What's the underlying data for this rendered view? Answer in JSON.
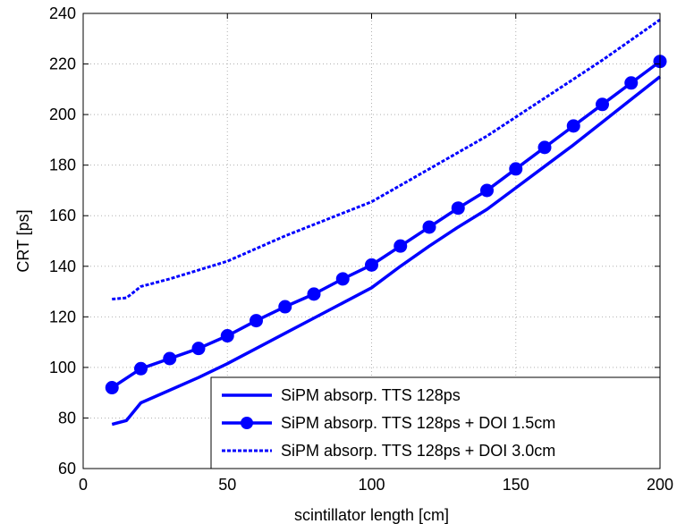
{
  "chart_data": {
    "type": "line",
    "title": "",
    "xlabel": "scintillator length [cm]",
    "ylabel": "CRT [ps]",
    "xlim": [
      0,
      200
    ],
    "ylim": [
      60,
      240
    ],
    "xticks": [
      0,
      50,
      100,
      150,
      200
    ],
    "yticks": [
      60,
      80,
      100,
      120,
      140,
      160,
      180,
      200,
      220,
      240
    ],
    "grid": true,
    "legend_position": "bottom-right",
    "series": [
      {
        "name": "SiPM absorp. TTS 128ps",
        "style": "solid",
        "marker": "none",
        "color": "#0000ff",
        "x": [
          10,
          15,
          20,
          30,
          40,
          50,
          60,
          70,
          80,
          90,
          100,
          110,
          120,
          130,
          140,
          150,
          160,
          170,
          180,
          190,
          200
        ],
        "y": [
          77.5,
          79,
          86,
          91,
          96,
          101.5,
          107.5,
          113.5,
          119.5,
          125.5,
          131.5,
          140,
          148,
          155.5,
          162.5,
          171,
          179.5,
          188,
          197,
          206,
          215
        ]
      },
      {
        "name": "SiPM absorp. TTS 128ps + DOI 1.5cm",
        "style": "solid",
        "marker": "circle",
        "color": "#0000ff",
        "x": [
          10,
          20,
          30,
          40,
          50,
          60,
          70,
          80,
          90,
          100,
          110,
          120,
          130,
          140,
          150,
          160,
          170,
          180,
          190,
          200
        ],
        "y": [
          92,
          99.5,
          103.5,
          107.5,
          112.5,
          118.5,
          124,
          129,
          135,
          140.5,
          148,
          155.5,
          163,
          170,
          178.5,
          187,
          195.5,
          204,
          212.5,
          221
        ]
      },
      {
        "name": "SiPM absorp. TTS 128ps + DOI 3.0cm",
        "style": "dashed",
        "marker": "none",
        "color": "#0000ff",
        "x": [
          10,
          15,
          20,
          30,
          40,
          50,
          60,
          70,
          80,
          90,
          100,
          110,
          120,
          130,
          140,
          150,
          160,
          170,
          180,
          190,
          200
        ],
        "y": [
          127,
          127.5,
          132,
          135,
          138.5,
          142,
          147,
          152,
          156.5,
          161,
          165.5,
          172,
          178.5,
          185,
          191.5,
          199,
          206.5,
          214,
          221.5,
          229.5,
          237.5
        ]
      }
    ]
  }
}
